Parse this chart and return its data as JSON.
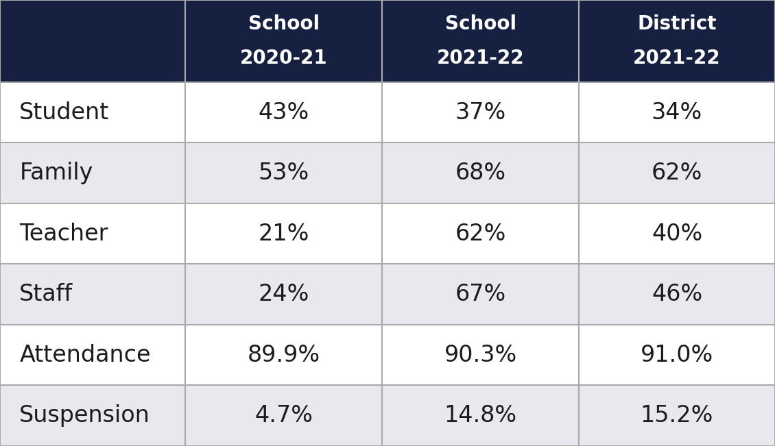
{
  "header_bg_color": "#162040",
  "header_text_color": "#FFFFFF",
  "row_colors": [
    "#FFFFFF",
    "#E8E8EF",
    "#FFFFFF",
    "#E8E8EF",
    "#FFFFFF",
    "#E8E8EF"
  ],
  "cell_text_color": "#1B1B1B",
  "border_color": "#AAAAAA",
  "col_headers": [
    [
      "School",
      "2020-21"
    ],
    [
      "School",
      "2021-22"
    ],
    [
      "District",
      "2021-22"
    ]
  ],
  "row_labels": [
    "Student",
    "Family",
    "Teacher",
    "Staff",
    "Attendance",
    "Suspension"
  ],
  "data": [
    [
      "43%",
      "37%",
      "34%"
    ],
    [
      "53%",
      "68%",
      "62%"
    ],
    [
      "21%",
      "62%",
      "40%"
    ],
    [
      "24%",
      "67%",
      "46%"
    ],
    [
      "89.9%",
      "90.3%",
      "91.0%"
    ],
    [
      "4.7%",
      "14.8%",
      "15.2%"
    ]
  ],
  "fig_width": 11.3,
  "fig_height": 6.51,
  "header_fontsize": 20,
  "label_fontsize": 24,
  "data_fontsize": 24
}
